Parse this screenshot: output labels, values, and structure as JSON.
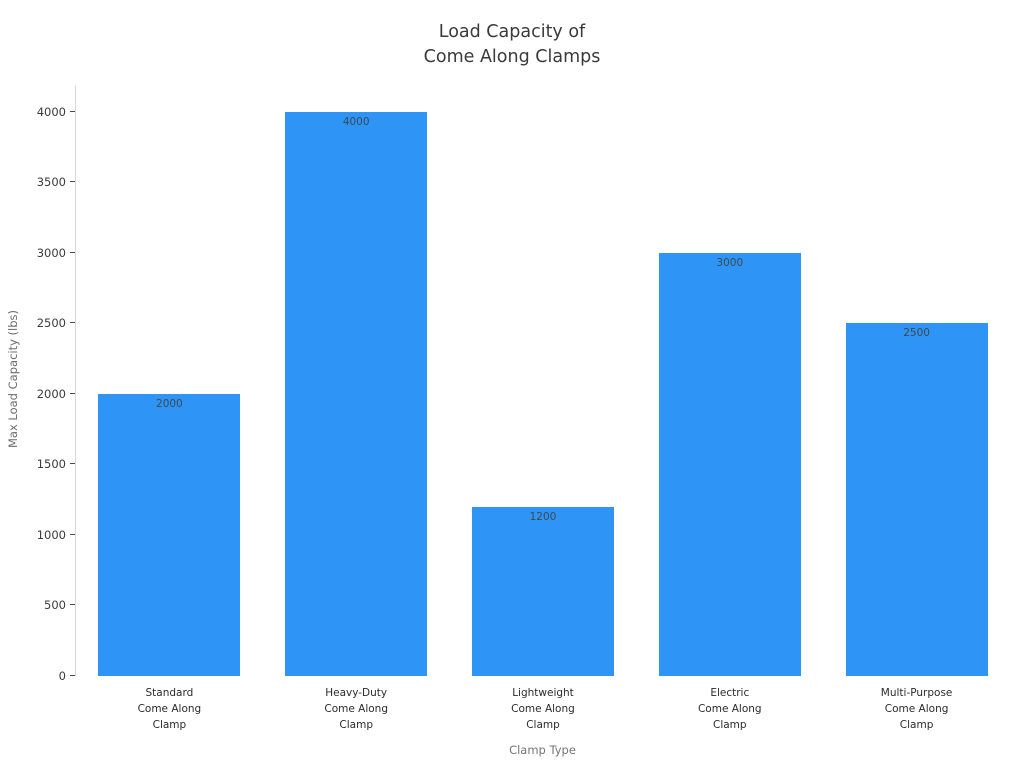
{
  "chart_data": {
    "type": "bar",
    "title": "Load Capacity of\nCome Along Clamps",
    "xlabel": "Clamp Type",
    "ylabel": "Max Load Capacity (lbs)",
    "categories": [
      "Standard\nCome Along\nClamp",
      "Heavy-Duty\nCome Along\nClamp",
      "Lightweight\nCome Along\nClamp",
      "Electric\nCome Along\nClamp",
      "Multi-Purpose\nCome Along\nClamp"
    ],
    "values": [
      2000,
      4000,
      1200,
      3000,
      2500
    ],
    "bar_labels": [
      "2000",
      "4000",
      "1200",
      "3000",
      "2500"
    ],
    "yticks": [
      0,
      500,
      1000,
      1500,
      2000,
      2500,
      3000,
      3500,
      4000
    ],
    "ylim": [
      0,
      4190
    ],
    "bar_color": "#2E94F5",
    "value_label_color": "#3b4a54",
    "grid": false,
    "legend": false
  }
}
